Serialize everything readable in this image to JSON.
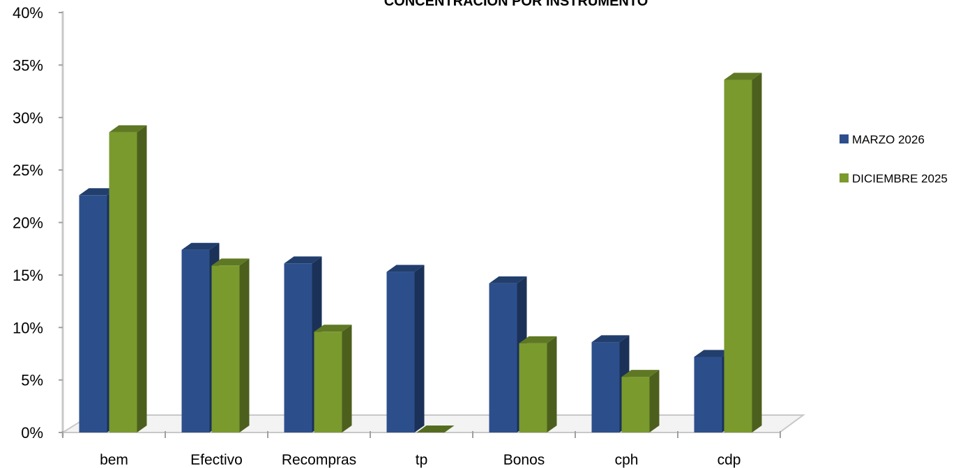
{
  "chart_data": {
    "type": "bar",
    "title": "CONCENTRACION POR INSTRUMENTO",
    "categories": [
      "bem",
      "Efectivo",
      "Recompras",
      "tp",
      "Bonos",
      "cph",
      "cdp"
    ],
    "series": [
      {
        "name": "MARZO 2026",
        "values": [
          22.6,
          17.4,
          16.1,
          15.3,
          14.2,
          8.6,
          7.2
        ],
        "color": "#2c4f8c"
      },
      {
        "name": "DICIEMBRE 2025",
        "values": [
          28.6,
          15.9,
          9.6,
          0.0,
          8.5,
          5.3,
          33.6
        ],
        "color": "#7a9a2e"
      }
    ],
    "ylim": [
      0,
      40
    ],
    "yticks": [
      "0%",
      "5%",
      "10%",
      "15%",
      "20%",
      "25%",
      "30%",
      "35%",
      "40%"
    ],
    "legend_position": "right",
    "grid": false
  }
}
